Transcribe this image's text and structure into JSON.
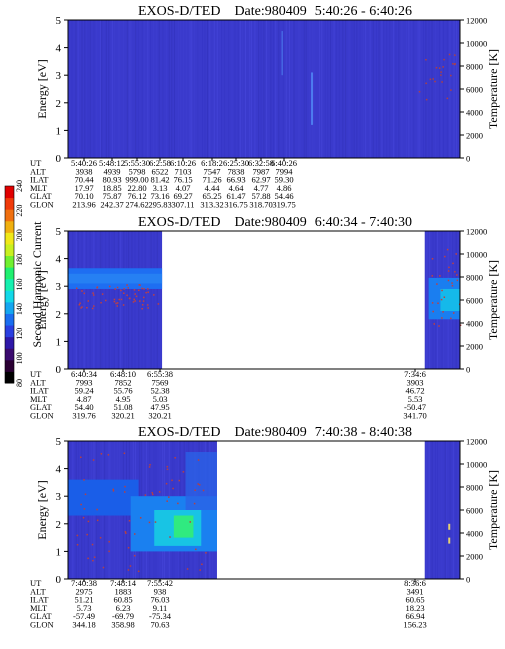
{
  "colors": {
    "background_field": "#3a3acc",
    "frame": "#000000"
  },
  "colorbar": {
    "label": "Second Harmonic Current",
    "ticks": [
      "80",
      "100",
      "120",
      "140",
      "160",
      "180",
      "200",
      "220",
      "240"
    ],
    "colors": [
      "#000000",
      "#2a0033",
      "#3a0a6e",
      "#2e18a8",
      "#2a3fe0",
      "#1a6ef0",
      "#14a6f0",
      "#12d8e8",
      "#16f0b0",
      "#20f070",
      "#70f030",
      "#c8f020",
      "#f0e818",
      "#f0b010",
      "#f07010",
      "#f03a0a",
      "#e00000"
    ]
  },
  "chart_data": [
    {
      "type": "heatmap",
      "title": "EXOS-D/TED",
      "date_label": "Date:980409",
      "time_range": "5:40:26 - 6:40:26",
      "ylabel": "Energy [eV]",
      "ylabel_right": "Temperature [K]",
      "ylim": [
        0,
        5
      ],
      "ylim_right": [
        0,
        12000
      ],
      "yticks": [
        "0",
        "1",
        "2",
        "3",
        "4",
        "5"
      ],
      "yticks_right": [
        "0",
        "2000",
        "4000",
        "6000",
        "8000",
        "10000",
        "12000"
      ],
      "data_coverage": [
        [
          0,
          1
        ]
      ],
      "table": {
        "row_labels": [
          "UT",
          "ALT",
          "ILAT",
          "MLT",
          "GLAT",
          "GLON"
        ],
        "columns": [
          [
            "5:40:26",
            "3938",
            "70.44",
            "17.97",
            "70.10",
            "213.96"
          ],
          [
            "5:48:12",
            "4939",
            "80.93",
            "18.85",
            "75.87",
            "242.37"
          ],
          [
            "5:55:30",
            "5798",
            "999.00",
            "22.80",
            "76.12",
            "274.62"
          ],
          [
            "6:2:58",
            "6522",
            "81.42",
            "3.13",
            "73.16",
            "295.83"
          ],
          [
            "6:10:26",
            "7103",
            "76.15",
            "4.07",
            "69.27",
            "307.11"
          ],
          [
            "6:18:2",
            "7547",
            "71.26",
            "4.44",
            "65.25",
            "313.32"
          ],
          [
            "6:25:30",
            "7838",
            "66.93",
            "4.64",
            "61.47",
            "316.75"
          ],
          [
            "6:32:58",
            "7987",
            "62.97",
            "4.77",
            "57.88",
            "318.70"
          ],
          [
            "6:40:26",
            "7994",
            "59.30",
            "4.86",
            "54.46",
            "319.75"
          ]
        ]
      }
    },
    {
      "type": "heatmap",
      "title": "EXOS-D/TED",
      "date_label": "Date:980409",
      "time_range": "6:40:34 - 7:40:30",
      "ylabel": "Energy [eV]",
      "ylabel_right": "Temperature [K]",
      "ylim": [
        0,
        5
      ],
      "ylim_right": [
        0,
        12000
      ],
      "yticks": [
        "0",
        "1",
        "2",
        "3",
        "4",
        "5"
      ],
      "yticks_right": [
        "0",
        "2000",
        "4000",
        "6000",
        "8000",
        "10000",
        "12000"
      ],
      "data_coverage": [
        [
          0,
          0.24
        ],
        [
          0.91,
          1
        ]
      ],
      "table": {
        "row_labels": [
          "UT",
          "ALT",
          "ILAT",
          "MLT",
          "GLAT",
          "GLON"
        ],
        "columns": [
          [
            "6:40:34",
            "7993",
            "59.24",
            "4.87",
            "54.40",
            "319.76"
          ],
          [
            "6:48:10",
            "7852",
            "55.76",
            "4.95",
            "51.08",
            "320.21"
          ],
          [
            "6:55:38",
            "7569",
            "52.38",
            "5.03",
            "47.95",
            "320.21"
          ],
          [
            "7:34:6",
            "3903",
            "46.72",
            "5.53",
            "-50.47",
            "341.70"
          ]
        ]
      }
    },
    {
      "type": "heatmap",
      "title": "EXOS-D/TED",
      "date_label": "Date:980409",
      "time_range": "7:40:38 - 8:40:38",
      "ylabel": "Energy [eV]",
      "ylabel_right": "Temperature [K]",
      "ylim": [
        0,
        5
      ],
      "ylim_right": [
        0,
        12000
      ],
      "yticks": [
        "0",
        "1",
        "2",
        "3",
        "4",
        "5"
      ],
      "yticks_right": [
        "0",
        "2000",
        "4000",
        "6000",
        "8000",
        "10000",
        "12000"
      ],
      "data_coverage": [
        [
          0,
          0.38
        ],
        [
          0.91,
          1
        ]
      ],
      "table": {
        "row_labels": [
          "UT",
          "ALT",
          "ILAT",
          "MLT",
          "GLAT",
          "GLON"
        ],
        "columns": [
          [
            "7:40:38",
            "2975",
            "51.21",
            "5.73",
            "-57.49",
            "344.18"
          ],
          [
            "7:48:14",
            "1883",
            "60.85",
            "6.23",
            "-69.79",
            "358.98"
          ],
          [
            "7:55:42",
            "938",
            "76.03",
            "9.11",
            "-75.34",
            "70.63"
          ],
          [
            "8:36:6",
            "3491",
            "60.65",
            "18.23",
            "66.94",
            "156.23"
          ]
        ]
      }
    }
  ]
}
